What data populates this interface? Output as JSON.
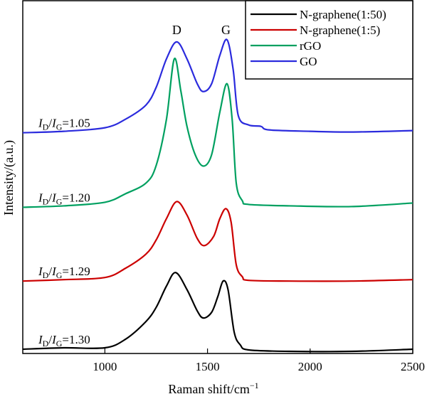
{
  "chart_data": {
    "type": "line",
    "xlabel": "Raman shift/cm",
    "xlabel_sup": "−1",
    "ylabel": "Intensity/(a.u.)",
    "xlim": [
      600,
      2500
    ],
    "ylim": [
      0,
      497
    ],
    "xticks": [
      1000,
      1500,
      2000,
      2500
    ],
    "grid": false,
    "legend_placement": "top-right",
    "peak_labels": [
      {
        "text": "D",
        "x": 1350
      },
      {
        "text": "G",
        "x": 1590
      }
    ],
    "ratio_label": {
      "i": "I",
      "d": "D",
      "slash": "/",
      "g": "G"
    },
    "series": [
      {
        "name": "N-graphene(1:50)",
        "color": "#000000",
        "ratio": "=1.30",
        "x": [
          600,
          800,
          1000,
          1100,
          1200,
          1250,
          1300,
          1345,
          1400,
          1450,
          1480,
          1520,
          1550,
          1576,
          1600,
          1630,
          1660,
          1700,
          1900,
          2200,
          2500
        ],
        "y": [
          6,
          8,
          8,
          20,
          45,
          65,
          95,
          114,
          90,
          60,
          50,
          58,
          80,
          102,
          90,
          30,
          12,
          5,
          3,
          3,
          6
        ]
      },
      {
        "name": "N-graphene(1:5)",
        "color": "#cc0000",
        "ratio": "=1.29",
        "x": [
          600,
          800,
          1000,
          1100,
          1200,
          1250,
          1300,
          1350,
          1400,
          1450,
          1485,
          1530,
          1560,
          1590,
          1615,
          1640,
          1670,
          1700,
          1900,
          2200,
          2500
        ],
        "y": [
          102,
          104,
          107,
          120,
          140,
          160,
          190,
          214,
          195,
          162,
          152,
          165,
          190,
          204,
          185,
          125,
          108,
          103,
          102,
          102,
          104
        ]
      },
      {
        "name": "rGO",
        "color": "#00a060",
        "ratio": "=1.20",
        "x": [
          600,
          800,
          1000,
          1100,
          1200,
          1250,
          1300,
          1338,
          1370,
          1400,
          1440,
          1480,
          1520,
          1560,
          1595,
          1620,
          1640,
          1670,
          1700,
          1900,
          2200,
          2500
        ],
        "y": [
          206,
          208,
          213,
          225,
          240,
          265,
          330,
          415,
          370,
          320,
          280,
          264,
          280,
          340,
          380,
          330,
          240,
          215,
          210,
          208,
          207,
          212
        ]
      },
      {
        "name": "GO",
        "color": "#2b2bdd",
        "ratio": "=1.05",
        "x": [
          600,
          800,
          1000,
          1100,
          1200,
          1250,
          1300,
          1350,
          1400,
          1450,
          1480,
          1520,
          1560,
          1595,
          1625,
          1650,
          1700,
          1760,
          1800,
          2000,
          2200,
          2500
        ],
        "y": [
          311,
          313,
          318,
          330,
          350,
          375,
          415,
          439,
          415,
          380,
          369,
          380,
          420,
          442,
          400,
          335,
          322,
          320,
          315,
          313,
          312,
          314
        ]
      }
    ]
  }
}
